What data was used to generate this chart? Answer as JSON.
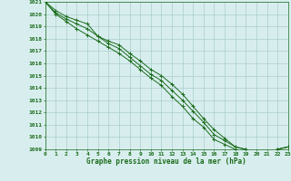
{
  "title": "Graphe pression niveau de la mer (hPa)",
  "x_values": [
    0,
    1,
    2,
    3,
    4,
    5,
    6,
    7,
    8,
    9,
    10,
    11,
    12,
    13,
    14,
    15,
    16,
    17,
    18,
    19,
    20,
    21,
    22,
    23
  ],
  "line1": [
    1021.0,
    1020.3,
    1019.8,
    1019.5,
    1019.2,
    1018.2,
    1017.8,
    1017.5,
    1016.8,
    1016.2,
    1015.5,
    1015.0,
    1014.3,
    1013.5,
    1012.5,
    1011.5,
    1010.6,
    1009.9,
    1009.2,
    1009.0,
    1008.8,
    1008.8,
    1009.0,
    1009.2
  ],
  "line2": [
    1021.0,
    1020.1,
    1019.6,
    1019.2,
    1018.8,
    1018.2,
    1017.6,
    1017.2,
    1016.5,
    1015.8,
    1015.1,
    1014.6,
    1013.8,
    1013.0,
    1012.1,
    1011.2,
    1010.2,
    1009.7,
    1009.2,
    1009.0,
    1008.8,
    1008.8,
    1009.0,
    1009.2
  ],
  "line3": [
    1021.0,
    1020.0,
    1019.4,
    1018.8,
    1018.3,
    1017.8,
    1017.3,
    1016.8,
    1016.2,
    1015.5,
    1014.8,
    1014.2,
    1013.3,
    1012.5,
    1011.5,
    1010.8,
    1009.8,
    1009.4,
    1009.0,
    1008.8,
    1008.8,
    1008.8,
    1009.0,
    1009.2
  ],
  "line_color": "#1a6b1a",
  "bg_color": "#d8eeee",
  "grid_color": "#aacccc",
  "tick_color": "#1a6b1a",
  "label_color": "#1a6b1a",
  "ylim_min": 1009,
  "ylim_max": 1021,
  "xlim_min": 0,
  "xlim_max": 23,
  "marker": "+"
}
